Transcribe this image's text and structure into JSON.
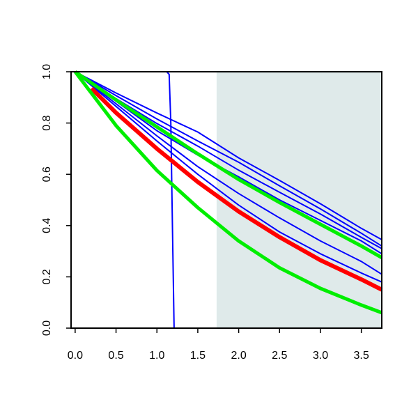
{
  "chart_data": {
    "type": "line",
    "title": "",
    "xlabel": "",
    "ylabel": "",
    "xlim": [
      -0.05,
      3.75
    ],
    "ylim": [
      0.0,
      1.0
    ],
    "x_ticks": [
      "0.0",
      "0.5",
      "1.0",
      "1.5",
      "2.0",
      "2.5",
      "3.0",
      "3.5"
    ],
    "x_tick_values": [
      0.0,
      0.5,
      1.0,
      1.5,
      2.0,
      2.5,
      3.0,
      3.5
    ],
    "y_ticks": [
      "0.0",
      "0.2",
      "0.4",
      "0.6",
      "0.8",
      "1.0"
    ],
    "y_tick_values": [
      0.0,
      0.2,
      0.4,
      0.6,
      0.8,
      1.0
    ],
    "grid": false,
    "legend": "none",
    "shaded_region": {
      "x_from": 1.73,
      "x_to": 3.75,
      "color": "#dfeaea"
    },
    "series": [
      {
        "color": "#0000ff",
        "width": 2,
        "x": [
          0,
          1.12,
          1.15,
          1.17,
          1.19,
          1.21,
          3.75
        ],
        "y": [
          1.0,
          1.0,
          0.99,
          0.8,
          0.4,
          0.0,
          0.0
        ]
      },
      {
        "color": "#0000ff",
        "width": 2,
        "x": [
          0,
          0.5,
          1.0,
          1.5,
          2.0,
          2.5,
          3.0,
          3.5,
          3.75
        ],
        "y": [
          1.0,
          0.917,
          0.839,
          0.765,
          0.664,
          0.576,
          0.485,
          0.389,
          0.345
        ]
      },
      {
        "color": "#0000ff",
        "width": 2,
        "x": [
          0,
          0.5,
          1.0,
          1.5,
          2.0,
          2.5,
          3.0,
          3.5,
          3.75
        ],
        "y": [
          1.0,
          0.907,
          0.816,
          0.73,
          0.647,
          0.555,
          0.465,
          0.37,
          0.32
        ]
      },
      {
        "color": "#0000ff",
        "width": 2,
        "x": [
          0,
          0.5,
          1.0,
          1.5,
          2.0,
          2.5,
          3.0,
          3.5,
          3.75
        ],
        "y": [
          1.0,
          0.895,
          0.798,
          0.71,
          0.616,
          0.53,
          0.445,
          0.354,
          0.31
        ]
      },
      {
        "color": "#0000ff",
        "width": 2,
        "x": [
          0,
          0.5,
          1.0,
          1.5,
          2.0,
          2.5,
          3.0,
          3.5,
          3.75
        ],
        "y": [
          1.0,
          0.885,
          0.77,
          0.675,
          0.59,
          0.5,
          0.42,
          0.34,
          0.29
        ]
      },
      {
        "color": "#0000ff",
        "width": 2,
        "x": [
          0,
          0.5,
          1.0,
          1.5,
          2.0,
          2.5,
          3.0,
          3.5,
          3.75
        ],
        "y": [
          1.0,
          0.875,
          0.75,
          0.63,
          0.525,
          0.43,
          0.34,
          0.26,
          0.21
        ]
      },
      {
        "color": "#0000ff",
        "width": 2,
        "x": [
          0,
          0.5,
          1.0,
          1.5,
          2.0,
          2.5,
          3.0,
          3.5,
          3.75
        ],
        "y": [
          1.0,
          0.865,
          0.73,
          0.6,
          0.48,
          0.375,
          0.29,
          0.215,
          0.18
        ]
      },
      {
        "color": "#00ee00",
        "width": 5,
        "x": [
          0,
          0.5,
          1.0,
          1.5,
          2.0,
          2.5,
          3.0,
          3.5,
          3.75
        ],
        "y": [
          1.0,
          0.89,
          0.785,
          0.68,
          0.58,
          0.49,
          0.405,
          0.32,
          0.275
        ]
      },
      {
        "color": "#ff0000",
        "width": 6,
        "x": [
          0.2,
          0.5,
          1.0,
          1.5,
          2.0,
          2.5,
          3.0,
          3.5,
          3.75
        ],
        "y": [
          0.935,
          0.84,
          0.7,
          0.57,
          0.455,
          0.355,
          0.265,
          0.19,
          0.15
        ]
      },
      {
        "color": "#00ee00",
        "width": 5,
        "x": [
          0,
          0.5,
          1.0,
          1.5,
          2.0,
          2.5,
          3.0,
          3.5,
          3.75
        ],
        "y": [
          1.0,
          0.79,
          0.615,
          0.47,
          0.34,
          0.235,
          0.155,
          0.09,
          0.06
        ]
      }
    ]
  }
}
